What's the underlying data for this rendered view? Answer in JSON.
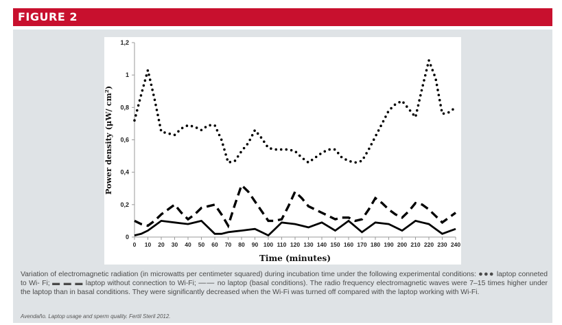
{
  "header": {
    "title": "FIGURE 2",
    "color": "#c8102e"
  },
  "chart_data": {
    "type": "line",
    "xlabel": "Time (minutes)",
    "ylabel": "Power density (μW/ cm²)",
    "xlim": [
      0,
      240
    ],
    "ylim": [
      0,
      1.2
    ],
    "x": [
      0,
      5,
      10,
      15,
      20,
      25,
      30,
      35,
      40,
      45,
      50,
      55,
      60,
      65,
      70,
      75,
      80,
      85,
      90,
      95,
      100,
      105,
      110,
      115,
      120,
      125,
      130,
      135,
      140,
      145,
      150,
      155,
      160,
      165,
      170,
      175,
      180,
      185,
      190,
      195,
      200,
      205,
      210,
      215,
      220,
      225,
      230,
      235,
      240
    ],
    "x_ticks": [
      "0",
      "10",
      "20",
      "30",
      "40",
      "50",
      "60",
      "70",
      "80",
      "90",
      "100",
      "110",
      "120",
      "130",
      "140",
      "150",
      "160",
      "170",
      "180",
      "190",
      "200",
      "210",
      "220",
      "230",
      "240"
    ],
    "y_ticks": [
      "0",
      "0,2",
      "0,4",
      "0,6",
      "0,8",
      "1",
      "1,2"
    ],
    "y_tick_values": [
      0,
      0.2,
      0.4,
      0.6,
      0.8,
      1.0,
      1.2
    ],
    "series": [
      {
        "style": "dotted",
        "color": "#000000",
        "values": [
          0.72,
          0.88,
          1.03,
          0.85,
          0.65,
          0.64,
          0.63,
          0.67,
          0.69,
          0.68,
          0.66,
          0.69,
          0.69,
          0.6,
          0.46,
          0.47,
          0.53,
          0.58,
          0.66,
          0.61,
          0.55,
          0.54,
          0.54,
          0.54,
          0.53,
          0.49,
          0.46,
          0.49,
          0.52,
          0.54,
          0.54,
          0.49,
          0.47,
          0.46,
          0.47,
          0.54,
          0.62,
          0.7,
          0.78,
          0.82,
          0.84,
          0.79,
          0.74,
          0.92,
          1.09,
          0.98,
          0.76,
          0.77,
          0.8
        ]
      },
      {
        "style": "dashed",
        "color": "#000000",
        "values": [
          0.1,
          0.08,
          0.07,
          0.1,
          0.14,
          0.17,
          0.2,
          0.15,
          0.11,
          0.14,
          0.18,
          0.19,
          0.2,
          0.14,
          0.07,
          0.2,
          0.32,
          0.28,
          0.22,
          0.16,
          0.1,
          0.1,
          0.11,
          0.19,
          0.28,
          0.24,
          0.19,
          0.17,
          0.15,
          0.13,
          0.11,
          0.12,
          0.12,
          0.1,
          0.11,
          0.17,
          0.24,
          0.21,
          0.17,
          0.14,
          0.12,
          0.16,
          0.21,
          0.2,
          0.17,
          0.13,
          0.09,
          0.12,
          0.15
        ]
      },
      {
        "style": "solid",
        "color": "#000000",
        "values": [
          0.01,
          0.02,
          0.04,
          0.07,
          0.1,
          0.095,
          0.09,
          0.085,
          0.08,
          0.09,
          0.1,
          0.06,
          0.02,
          0.02,
          0.03,
          0.035,
          0.04,
          0.045,
          0.05,
          0.03,
          0.01,
          0.05,
          0.09,
          0.085,
          0.08,
          0.07,
          0.06,
          0.075,
          0.09,
          0.065,
          0.04,
          0.07,
          0.1,
          0.065,
          0.03,
          0.06,
          0.09,
          0.085,
          0.08,
          0.06,
          0.04,
          0.07,
          0.1,
          0.09,
          0.08,
          0.05,
          0.02,
          0.035,
          0.05
        ]
      }
    ]
  },
  "caption": {
    "part1": "Variation of electromagnetic radiation (in microwatts per centimeter squared) during incubation time under the following experimental conditions:",
    "glyph_dots": "●●●",
    "part2": " laptop conneted to Wi- Fi; ",
    "glyph_dashes": "▬ ▬ ▬",
    "part3": " laptop without connection to Wi-Fi; ",
    "glyph_line": "——",
    "part4": " no laptop (basal conditions). The radio frequency electromagnetic waves were 7–15 times higher under the laptop than in basal conditions. They were significantly decreased when the Wi-Fi was turned off compared with the laptop working with Wi-Fi."
  },
  "source": "Avendaño. Laptop usage and sperm quality. Fertil Steril 2012."
}
